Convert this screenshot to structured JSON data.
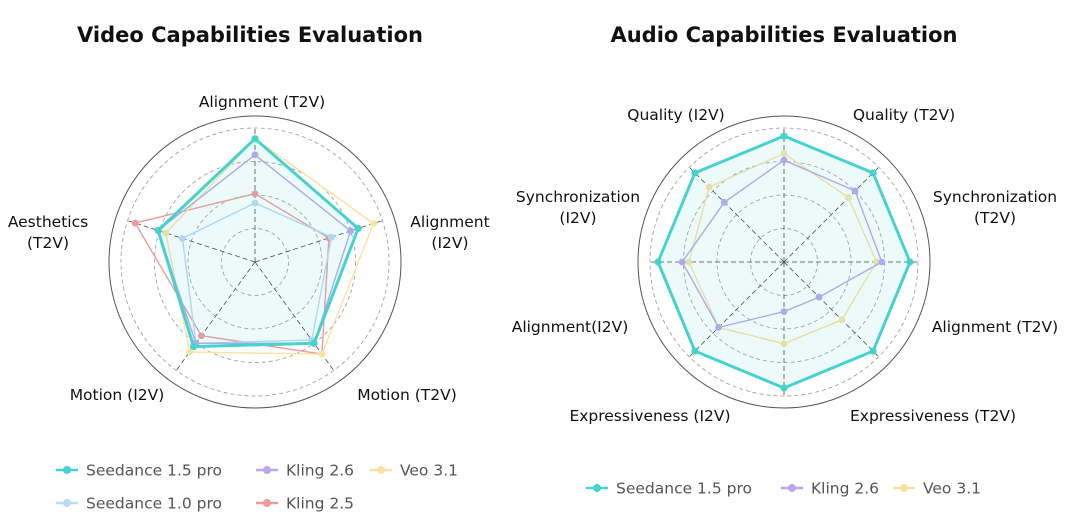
{
  "chart_data": [
    {
      "type": "radar",
      "title": "Video Capabilities Evaluation",
      "axes": [
        "Alignment (T2V)",
        "Alignment (I2V)",
        "Motion (T2V)",
        "Motion (I2V)",
        "Aesthetics (T2V)"
      ],
      "axis_labels": [
        [
          "Alignment (T2V)"
        ],
        [
          "Alignment",
          "(I2V)"
        ],
        [
          "Motion (T2V)"
        ],
        [
          "Motion (I2V)"
        ],
        [
          "Aesthetics",
          "(T2V)"
        ]
      ],
      "range": [
        0,
        1
      ],
      "grid": "dashed rings",
      "series": [
        {
          "name": "Kling 2.5",
          "color": "#ef9a9a",
          "values": [
            0.51,
            0.58,
            0.85,
            0.68,
            0.94
          ]
        },
        {
          "name": "Seedance 1.0 pro",
          "color": "#bcd9f5",
          "values": [
            0.44,
            0.6,
            0.72,
            0.75,
            0.57
          ]
        },
        {
          "name": "Veo 3.1",
          "color": "#f9e3a3",
          "values": [
            0.92,
            0.93,
            0.85,
            0.83,
            0.7
          ]
        },
        {
          "name": "Kling 2.6",
          "color": "#b9a8ec",
          "values": [
            0.8,
            0.75,
            0.75,
            0.75,
            0.76
          ]
        },
        {
          "name": "Seedance 1.5 pro",
          "color": "#48d2cf",
          "values": [
            0.92,
            0.81,
            0.75,
            0.78,
            0.76
          ]
        }
      ],
      "legend_position": "bottom"
    },
    {
      "type": "radar",
      "title": "Audio Capabilities Evaluation",
      "axes": [
        "Quality (T2V)",
        "Synchronization (T2V)",
        "Alignment (T2V)",
        "Expressiveness (T2V)",
        "Expressiveness (I2V)",
        "Alignment(I2V)",
        "Synchronization (I2V)",
        "Quality (I2V)"
      ],
      "axis_labels": [
        [
          "Quality (T2V)"
        ],
        [
          "Synchronization",
          "(T2V)"
        ],
        [
          "Alignment (T2V)"
        ],
        [
          "Expressiveness (T2V)"
        ],
        [
          "Expressiveness (I2V)"
        ],
        [
          "Alignment(I2V)"
        ],
        [
          "Synchronization",
          "(I2V)"
        ],
        [
          "Quality (I2V)"
        ]
      ],
      "range": [
        0,
        1
      ],
      "grid": "dashed rings",
      "series": [
        {
          "name": "Veo 3.1",
          "color": "#f9e3a3",
          "values": [
            0.81,
            0.68,
            0.69,
            0.61,
            0.61,
            0.69,
            0.71,
            0.79
          ]
        },
        {
          "name": "Kling 2.6",
          "color": "#b9a8ec",
          "values": [
            0.76,
            0.75,
            0.73,
            0.37,
            0.37,
            0.69,
            0.76,
            0.63
          ]
        },
        {
          "name": "Seedance 1.5 pro",
          "color": "#48d2cf",
          "values": [
            0.94,
            0.94,
            0.94,
            0.94,
            0.94,
            0.94,
            0.94,
            0.94
          ]
        }
      ],
      "legend_position": "bottom"
    }
  ],
  "legends": {
    "video": [
      "Seedance 1.5 pro",
      "Kling 2.6",
      "Veo 3.1",
      "Seedance 1.0 pro",
      "Kling 2.5"
    ],
    "audio": [
      "Seedance 1.5 pro",
      "Kling 2.6",
      "Veo 3.1"
    ]
  }
}
